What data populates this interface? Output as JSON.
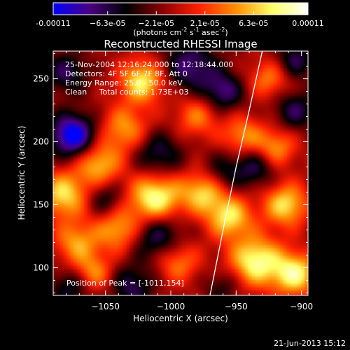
{
  "chart_data": {
    "type": "heatmap",
    "title": "Reconstructed RHESSI Image",
    "xlabel": "Heliocentric X (arcsec)",
    "ylabel": "Heliocentric Y (arcsec)",
    "xlim": [
      -1090,
      -895
    ],
    "ylim": [
      78,
      272
    ],
    "x_ticks": [
      -1050,
      -1000,
      -950,
      -900
    ],
    "x_tick_labels": [
      "−1050",
      "−1000",
      "−950",
      "−900"
    ],
    "y_ticks": [
      100,
      150,
      200,
      250
    ],
    "y_tick_labels": [
      "100",
      "150",
      "200",
      "250"
    ],
    "colorbar": {
      "range": [
        -0.00011,
        0.00011
      ],
      "ticks": [
        -0.00011,
        -6.3e-05,
        -2.1e-05,
        2.1e-05,
        6.3e-05,
        0.00011
      ],
      "tick_labels": [
        "-0.00011",
        "−6.3e-05",
        "−2.1e-05",
        "2.1e-05",
        "6.3e-05",
        "0.00011"
      ],
      "unit_label": "(photons cm",
      "unit_exp1": "-2",
      "unit_mid": " s",
      "unit_exp2": "-1",
      "unit_mid2": " asec",
      "unit_exp3": "-2",
      "unit_end": ")",
      "colors": [
        "#0000ff",
        "#4b0082",
        "#000000",
        "#8b0000",
        "#ff2000",
        "#ff8c00",
        "#ffff66",
        "#ffffff"
      ]
    },
    "info_lines": [
      "25-Nov-2004 12:16:24.000 to 12:18:44.000",
      "Detectors: 4F 5F 6F 7F 8F, Att 0",
      "Energy Range: 25.0 - 50.0 keV",
      "Clean     Total counts: 1.73E+03"
    ],
    "peak_text": "Position of Peak = [-1011,154]",
    "limb_curve": [
      {
        "x": -970,
        "y": 78
      },
      {
        "x": -960,
        "y": 130
      },
      {
        "x": -950,
        "y": 180
      },
      {
        "x": -940,
        "y": 225
      },
      {
        "x": -930,
        "y": 272
      }
    ],
    "blobs": [
      {
        "x": -1012,
        "y": 155,
        "v": 1.0,
        "s": 14
      },
      {
        "x": -1022,
        "y": 248,
        "v": 0.85,
        "s": 12
      },
      {
        "x": -1082,
        "y": 158,
        "v": 0.8,
        "s": 13
      },
      {
        "x": -1072,
        "y": 120,
        "v": 0.6,
        "s": 12
      },
      {
        "x": -1035,
        "y": 210,
        "v": 0.6,
        "s": 13
      },
      {
        "x": -1055,
        "y": 182,
        "v": 0.7,
        "s": 12
      },
      {
        "x": -1040,
        "y": 130,
        "v": 0.65,
        "s": 12
      },
      {
        "x": -980,
        "y": 220,
        "v": 0.5,
        "s": 12
      },
      {
        "x": -975,
        "y": 160,
        "v": 0.75,
        "s": 12
      },
      {
        "x": -995,
        "y": 105,
        "v": 0.55,
        "s": 12
      },
      {
        "x": -1060,
        "y": 95,
        "v": 0.6,
        "s": 11
      },
      {
        "x": -955,
        "y": 140,
        "v": 0.8,
        "s": 12
      },
      {
        "x": -945,
        "y": 205,
        "v": 0.55,
        "s": 11
      },
      {
        "x": -925,
        "y": 250,
        "v": 0.5,
        "s": 11
      },
      {
        "x": -935,
        "y": 105,
        "v": 0.95,
        "s": 14
      },
      {
        "x": -912,
        "y": 150,
        "v": 0.8,
        "s": 12
      },
      {
        "x": -905,
        "y": 95,
        "v": 0.9,
        "s": 12
      },
      {
        "x": -920,
        "y": 195,
        "v": 0.6,
        "s": 11
      },
      {
        "x": -1075,
        "y": 205,
        "v": -1.0,
        "s": 12
      },
      {
        "x": -985,
        "y": 260,
        "v": -0.6,
        "s": 14
      },
      {
        "x": -1010,
        "y": 190,
        "v": -0.5,
        "s": 13
      },
      {
        "x": -1080,
        "y": 255,
        "v": -0.5,
        "s": 11
      },
      {
        "x": -1010,
        "y": 125,
        "v": -0.6,
        "s": 14
      },
      {
        "x": -1050,
        "y": 155,
        "v": -0.4,
        "s": 10
      },
      {
        "x": -1075,
        "y": 85,
        "v": -0.5,
        "s": 11
      },
      {
        "x": -960,
        "y": 240,
        "v": -0.6,
        "s": 11
      },
      {
        "x": -960,
        "y": 175,
        "v": -0.4,
        "s": 11
      },
      {
        "x": -935,
        "y": 180,
        "v": -0.5,
        "s": 11
      },
      {
        "x": -1030,
        "y": 85,
        "v": -0.5,
        "s": 12
      },
      {
        "x": -960,
        "y": 85,
        "v": -0.3,
        "s": 10
      },
      {
        "x": -905,
        "y": 225,
        "v": -0.5,
        "s": 11
      },
      {
        "x": -905,
        "y": 265,
        "v": -0.5,
        "s": 10
      }
    ]
  },
  "footer": {
    "date": "21-Jun-2013 15:12"
  }
}
